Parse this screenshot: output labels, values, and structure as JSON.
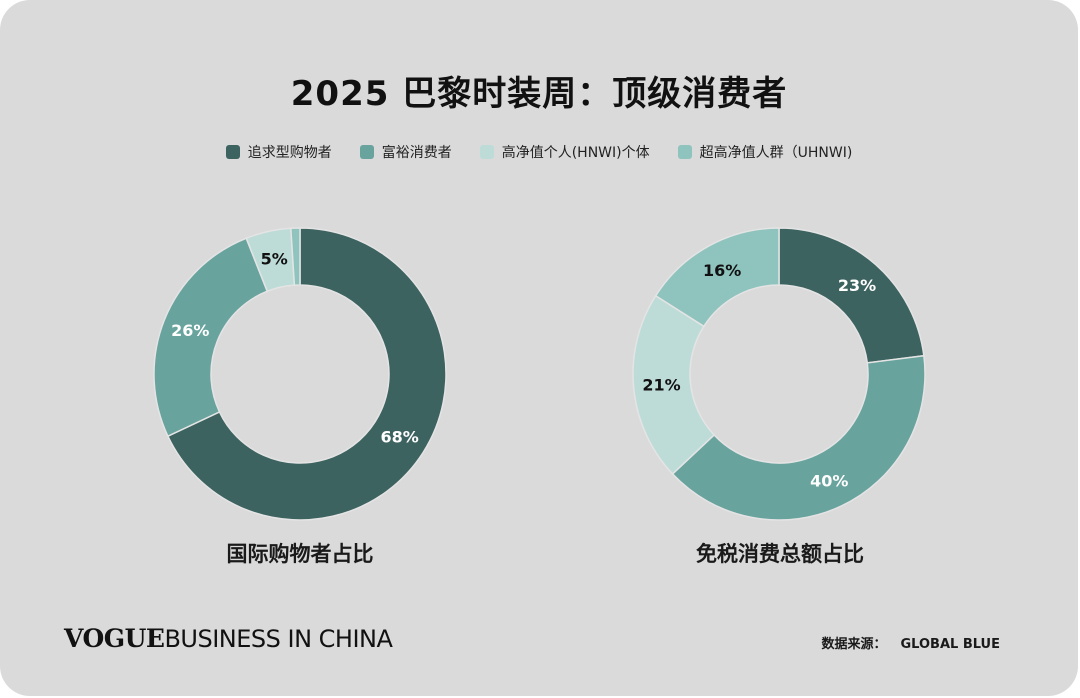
{
  "title": "2025 巴黎时装周：顶级消费者",
  "legend": [
    {
      "label": "追求型购物者",
      "color": "#3d6360"
    },
    {
      "label": "富裕消费者",
      "color": "#68a39d"
    },
    {
      "label": "高净值个人(HNWI)个体",
      "color": "#bddcd8"
    },
    {
      "label": "超高净值人群（UHNWI)",
      "color": "#8fc3bd"
    }
  ],
  "chart_data": [
    {
      "type": "pie",
      "title": "国际购物者占比",
      "categories": [
        "追求型购物者",
        "富裕消费者",
        "高净值个人(HNWI)个体",
        "超高净值人群（UHNWI)"
      ],
      "values": [
        68,
        26,
        5,
        1
      ],
      "labels": [
        "68%",
        "26%",
        "5%",
        ""
      ],
      "label_colors": [
        "#ffffff",
        "#ffffff",
        "#111111",
        "#111111"
      ],
      "colors": [
        "#3d6360",
        "#68a39d",
        "#bddcd8",
        "#8fc3bd"
      ]
    },
    {
      "type": "pie",
      "title": "免税消费总额占比",
      "categories": [
        "追求型购物者",
        "富裕消费者",
        "高净值个人(HNWI)个体",
        "超高净值人群（UHNWI)"
      ],
      "values": [
        23,
        40,
        21,
        16
      ],
      "labels": [
        "23%",
        "40%",
        "21%",
        "16%"
      ],
      "label_colors": [
        "#ffffff",
        "#ffffff",
        "#111111",
        "#111111"
      ],
      "colors": [
        "#3d6360",
        "#68a39d",
        "#bddcd8",
        "#8fc3bd"
      ]
    }
  ],
  "footer": {
    "brand_part1": "VOGUE",
    "brand_part2": "BUSINESS IN CHINA",
    "source_label": "数据来源：",
    "source_value": "GLOBAL BLUE"
  }
}
